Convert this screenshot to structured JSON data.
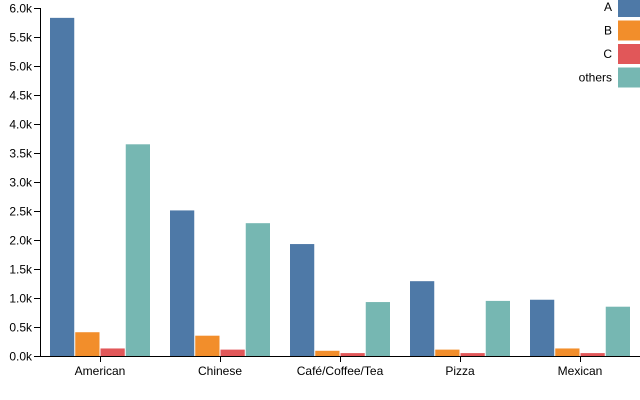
{
  "chart_data": {
    "type": "bar",
    "title": "",
    "xlabel": "",
    "ylabel": "",
    "ylim": [
      0,
      6000
    ],
    "y_ticks": [
      {
        "value": 0,
        "label": "0.0k"
      },
      {
        "value": 500,
        "label": "0.5k"
      },
      {
        "value": 1000,
        "label": "1.0k"
      },
      {
        "value": 1500,
        "label": "1.5k"
      },
      {
        "value": 2000,
        "label": "2.0k"
      },
      {
        "value": 2500,
        "label": "2.5k"
      },
      {
        "value": 3000,
        "label": "3.0k"
      },
      {
        "value": 3500,
        "label": "3.5k"
      },
      {
        "value": 4000,
        "label": "4.0k"
      },
      {
        "value": 4500,
        "label": "4.5k"
      },
      {
        "value": 5000,
        "label": "5.0k"
      },
      {
        "value": 5500,
        "label": "5.5k"
      },
      {
        "value": 6000,
        "label": "6.0k"
      }
    ],
    "categories": [
      "American",
      "Chinese",
      "Café/Coffee/Tea",
      "Pizza",
      "Mexican"
    ],
    "series": [
      {
        "name": "A",
        "color": "#4e79a7",
        "values": [
          5830,
          2510,
          1930,
          1290,
          970
        ]
      },
      {
        "name": "B",
        "color": "#f28e2b",
        "values": [
          410,
          350,
          90,
          110,
          130
        ]
      },
      {
        "name": "C",
        "color": "#e15759",
        "values": [
          130,
          110,
          50,
          50,
          50
        ]
      },
      {
        "name": "others",
        "color": "#76b7b2",
        "values": [
          3650,
          2290,
          930,
          950,
          850
        ]
      }
    ],
    "legend_position": "top-right",
    "grid": false
  }
}
